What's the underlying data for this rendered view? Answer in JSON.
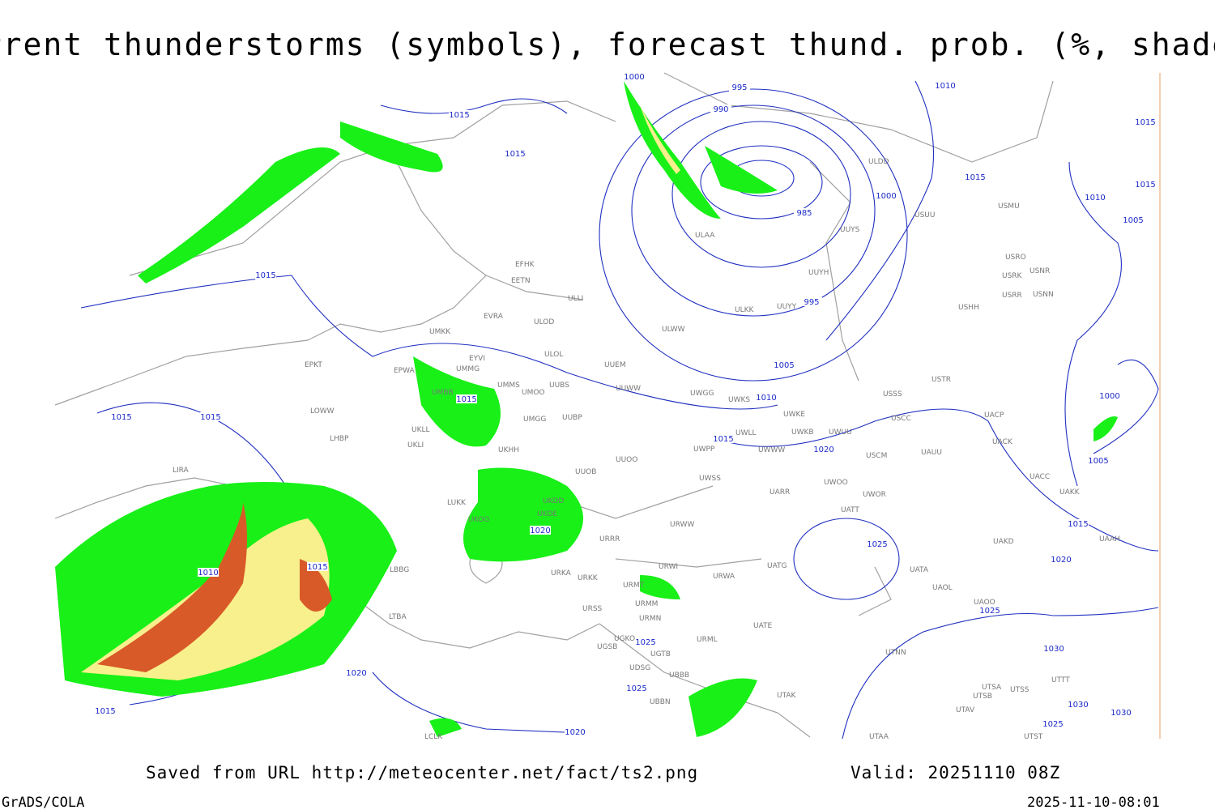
{
  "header": {
    "title": "Current thunderstorms (symbols), forecast thund. prob. (%, shaded)"
  },
  "isobar_labels": [
    1000,
    995,
    1010,
    1015,
    990,
    1015,
    1015,
    1000,
    1015,
    1010,
    1015,
    1005,
    985,
    995,
    1015,
    1005,
    1010,
    1015,
    1000,
    1005,
    1015,
    1015,
    1015,
    1020,
    1020,
    1025,
    1015,
    1020,
    1010,
    1015,
    1025,
    1025,
    1030,
    1020,
    1025,
    1015,
    1030,
    1030,
    1020,
    1025
  ],
  "stations": [
    "ULDD",
    "USUU",
    "USMU",
    "UUYS",
    "ULAA",
    "USRO",
    "USRK",
    "USNR",
    "UUYH",
    "EFHK",
    "EETN",
    "USRR",
    "USNN",
    "ULLI",
    "ULKK",
    "UUYY",
    "USHH",
    "EVRA",
    "ULOD",
    "ULWW",
    "UMKK",
    "ULOL",
    "EYVI",
    "UUEM",
    "EPKT",
    "UMMG",
    "EPWA",
    "UMMS",
    "UUBS",
    "UUWW",
    "UMOO",
    "UMBB",
    "USTR",
    "USSS",
    "UWGG",
    "UWKS",
    "LOWW",
    "UWKE",
    "UMGG",
    "UUBP",
    "UACP",
    "USCC",
    "UKLL",
    "UWKB",
    "UWUU",
    "UWLL",
    "UACK",
    "LHBP",
    "UKLI",
    "UKHH",
    "UWPP",
    "UWWW",
    "USCM",
    "UAUU",
    "UUOO",
    "UUOB",
    "LIRA",
    "UACC",
    "UWSS",
    "UARR",
    "UWOO",
    "UWOR",
    "UAKK",
    "LUKK",
    "UKDD",
    "UATT",
    "UKOO",
    "UKDE",
    "URWW",
    "URRR",
    "UAKD",
    "UAAH",
    "LBBG",
    "URKA",
    "UATA",
    "UATG",
    "URWI",
    "URKK",
    "URWA",
    "URMT",
    "UAOL",
    "LTBA",
    "URSS",
    "URMM",
    "UATE",
    "UAOO",
    "URMN",
    "UGKO",
    "URML",
    "UGSB",
    "UGTB",
    "UTNN",
    "UDSG",
    "UBBB",
    "UTTT",
    "UTSA",
    "UTSS",
    "UTSB",
    "UTAK",
    "UBBN",
    "UTAV",
    "LCLK",
    "UTAA",
    "UTST"
  ],
  "footer": {
    "source": "Saved from URL http://meteocenter.net/fact/ts2.png",
    "valid": "Valid: 20251110 08Z",
    "credit": "GrADS/COLA",
    "timestamp": "2025-11-10-08:01"
  }
}
